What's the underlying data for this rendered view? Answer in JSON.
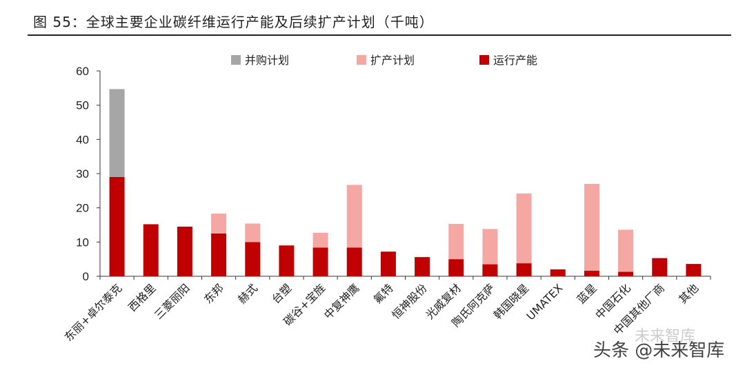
{
  "title": "图 55：全球主要企业碳纤维运行产能及后续扩产计划（千吨）",
  "watermark": "头条 @未来智库",
  "watermark_logo": "未来智库",
  "colors": {
    "merger": "#a6a6a6",
    "expansion": "#f4a7a3",
    "running": "#c00000"
  },
  "chart_data": {
    "type": "bar",
    "stacked": true,
    "categories": [
      "东丽+卓尔泰克",
      "西格里",
      "三菱丽阳",
      "东邦",
      "赫式",
      "台塑",
      "碳谷+宝旌",
      "中复神鹰",
      "氟特",
      "恒神股份",
      "光威复材",
      "陶氏阿克萨",
      "韩国晓星",
      "UMATEX",
      "蓝星",
      "中国石化",
      "中国其他厂商",
      "其他"
    ],
    "series": [
      {
        "name": "运行产能",
        "values": [
          29,
          15.2,
          14.5,
          12.5,
          10,
          9,
          8.4,
          8.4,
          7.2,
          5.6,
          5,
          3.5,
          3.8,
          2,
          1.6,
          1.3,
          5.3,
          3.6
        ]
      },
      {
        "name": "扩产计划",
        "values": [
          0,
          0,
          0,
          5.8,
          5.4,
          0,
          4.3,
          18.3,
          0,
          0,
          10.3,
          10.3,
          20.4,
          0,
          25.4,
          12.3,
          0,
          0
        ]
      },
      {
        "name": "并购计划",
        "values": [
          25.7,
          0,
          0,
          0,
          0,
          0,
          0,
          0,
          0,
          0,
          0,
          0,
          0,
          0,
          0,
          0,
          0,
          0
        ]
      }
    ],
    "legend_order": [
      "并购计划",
      "扩产计划",
      "运行产能"
    ],
    "ylim": [
      0,
      60
    ],
    "yticks": [
      0,
      10,
      20,
      30,
      40,
      50,
      60
    ],
    "legend_position": "top",
    "grid": false,
    "xlabel": "",
    "ylabel": ""
  }
}
